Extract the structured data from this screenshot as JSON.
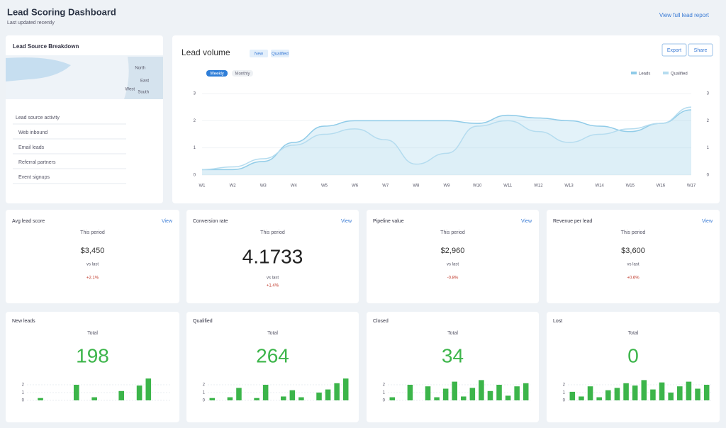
{
  "header": {
    "title": "Lead Scoring Dashboard",
    "subtitle": "Last updated recently",
    "link": "View full lead report"
  },
  "sidebar": {
    "title": "Lead Source Breakdown",
    "map_labels": [
      "North",
      "East",
      "South",
      "West"
    ],
    "items": [
      "Lead source activity",
      "Web inbound",
      "Email leads",
      "Referral partners",
      "Event signups"
    ]
  },
  "main_chart": {
    "type": "line",
    "title": "Lead volume",
    "badges": [
      "New",
      "Qualified"
    ],
    "tabs": [
      "Weekly",
      "Monthly"
    ],
    "buttons": [
      "Export",
      "Share"
    ],
    "x": [
      "W1",
      "W2",
      "W3",
      "W4",
      "W5",
      "W6",
      "W7",
      "W8",
      "W9",
      "W10",
      "W11",
      "W12",
      "W13",
      "W14",
      "W15",
      "W16",
      "W17"
    ],
    "series": [
      {
        "name": "Leads",
        "color": "#8fcbe8",
        "values": [
          0.2,
          0.2,
          0.5,
          1.2,
          1.8,
          2.0,
          2.0,
          2.0,
          2.0,
          1.9,
          2.2,
          2.1,
          2.0,
          1.8,
          1.6,
          1.9,
          2.4
        ]
      },
      {
        "name": "Qualified",
        "color": "#b5dcef",
        "values": [
          0.2,
          0.3,
          0.6,
          1.1,
          1.5,
          1.7,
          1.3,
          0.4,
          0.8,
          1.8,
          2.0,
          1.6,
          1.2,
          1.5,
          1.7,
          1.9,
          2.5
        ]
      }
    ],
    "ylim": [
      0,
      3
    ],
    "yticks": [
      0,
      1,
      2,
      3
    ],
    "y2lim": [
      0,
      3
    ],
    "y2ticks": [
      0,
      1,
      2,
      3
    ]
  },
  "kpis": [
    {
      "title": "Avg lead score",
      "link": "View",
      "subtitle": "This period",
      "value": "$3,450",
      "detail": "vs last",
      "change": "+2.1%"
    },
    {
      "title": "Conversion rate",
      "link": "View",
      "subtitle": "This period",
      "value": "4.1733",
      "detail": "vs last",
      "change": "+1.4%"
    },
    {
      "title": "Pipeline value",
      "link": "View",
      "subtitle": "This period",
      "value": "$2,960",
      "detail": "vs last",
      "change": "-0.8%"
    },
    {
      "title": "Revenue per lead",
      "link": "View",
      "subtitle": "This period",
      "value": "$3,600",
      "detail": "vs last",
      "change": "+0.6%"
    }
  ],
  "counts": [
    {
      "title": "New leads",
      "subtitle": "Total",
      "value": "198",
      "color": "#3cb54a",
      "ylim": [
        0,
        3
      ],
      "yticks": [
        0,
        1,
        2
      ],
      "bars": [
        0,
        0.3,
        0,
        0,
        0,
        2,
        0,
        0.4,
        0,
        0,
        1.2,
        0,
        1.9,
        2.8,
        0,
        0
      ]
    },
    {
      "title": "Qualified",
      "subtitle": "Total",
      "value": "264",
      "color": "#3cb54a",
      "ylim": [
        0,
        3
      ],
      "yticks": [
        0,
        1,
        2
      ],
      "bars": [
        0.3,
        0,
        0.4,
        1.6,
        0,
        0.3,
        2.0,
        0,
        0.5,
        1.3,
        0.4,
        0,
        1.0,
        1.4,
        2.2,
        2.8
      ]
    },
    {
      "title": "Closed",
      "subtitle": "Total",
      "value": "34",
      "color": "#3cb54a",
      "ylim": [
        0,
        3
      ],
      "yticks": [
        0,
        1,
        2
      ],
      "bars": [
        0.4,
        0,
        2.0,
        0,
        1.8,
        0.4,
        1.5,
        2.4,
        0.5,
        1.6,
        2.6,
        1.2,
        2.0,
        0.6,
        1.8,
        2.2
      ]
    },
    {
      "title": "Lost",
      "subtitle": "Total",
      "value": "0",
      "color": "#3cb54a",
      "ylim": [
        0,
        3
      ],
      "yticks": [
        0,
        1,
        2
      ],
      "bars": [
        1.1,
        0.5,
        1.8,
        0.4,
        1.3,
        1.6,
        2.2,
        1.9,
        2.6,
        1.4,
        2.3,
        1.0,
        1.8,
        2.4,
        1.5,
        2.0
      ]
    }
  ]
}
